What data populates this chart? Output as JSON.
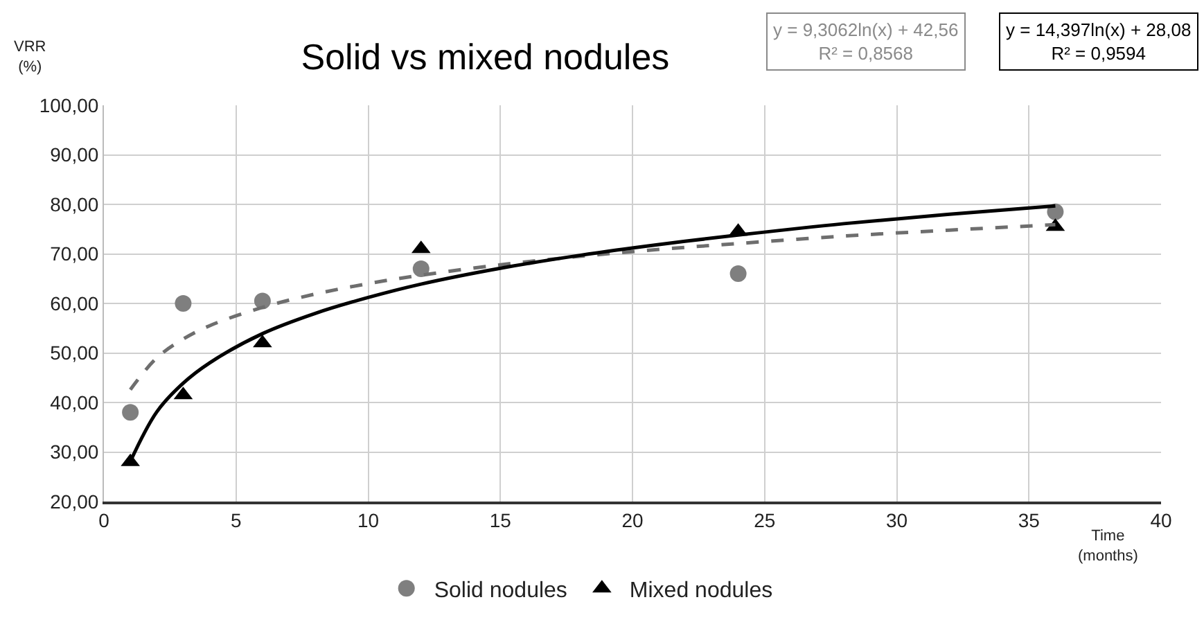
{
  "chart_data": {
    "type": "scatter",
    "title": "Solid vs mixed nodules",
    "xlabel": "Time\n(months)",
    "ylabel": "VRR\n(%)",
    "xlim": [
      0,
      40
    ],
    "xticks": [
      0,
      5,
      10,
      15,
      20,
      25,
      30,
      35,
      40
    ],
    "ylim": [
      20,
      100
    ],
    "yticks": [
      {
        "value": 20,
        "label": "20,00"
      },
      {
        "value": 30,
        "label": "30,00"
      },
      {
        "value": 40,
        "label": "40,00"
      },
      {
        "value": 50,
        "label": "50,00"
      },
      {
        "value": 60,
        "label": "60,00"
      },
      {
        "value": 70,
        "label": "70,00"
      },
      {
        "value": 80,
        "label": "80,00"
      },
      {
        "value": 90,
        "label": "90,00"
      },
      {
        "value": 100,
        "label": "100,00"
      }
    ],
    "grid": true,
    "legend": "bottom",
    "annotations": [
      "y = 9,3062ln(x) + 42,56\nR² = 0,8568",
      "y = 14,397ln(x) + 28,08\nR² = 0,9594"
    ],
    "series": [
      {
        "name": "Solid nodules",
        "marker": "circle",
        "color": "#7f7f7f",
        "x": [
          1,
          3,
          6,
          12,
          24,
          36
        ],
        "values": [
          38,
          60,
          60.5,
          67,
          66,
          78.5
        ]
      },
      {
        "name": "Mixed nodules",
        "marker": "triangle",
        "color": "#000000",
        "x": [
          1,
          3,
          6,
          12,
          24,
          36
        ],
        "values": [
          28,
          41.5,
          52,
          71,
          74.5,
          75.5
        ]
      },
      {
        "type": "line",
        "line_style": "dashed",
        "color": "#6e6e6e",
        "x": [
          1,
          2,
          3,
          4,
          6,
          8,
          10,
          12,
          15,
          18,
          21,
          24,
          28,
          32,
          36
        ],
        "values": [
          42.6,
          49.0,
          52.8,
          55.5,
          59.2,
          61.9,
          64.0,
          65.7,
          67.8,
          69.5,
          70.9,
          72.1,
          73.6,
          74.8,
          75.9
        ]
      },
      {
        "type": "line",
        "line_style": "solid",
        "color": "#000000",
        "x": [
          1,
          2,
          3,
          4,
          6,
          8,
          10,
          12,
          15,
          18,
          21,
          24,
          28,
          32,
          36
        ],
        "values": [
          28.1,
          38.1,
          43.9,
          48.0,
          53.9,
          58.0,
          61.2,
          63.9,
          67.1,
          69.7,
          71.9,
          73.8,
          76.1,
          78.0,
          79.7
        ]
      }
    ]
  }
}
